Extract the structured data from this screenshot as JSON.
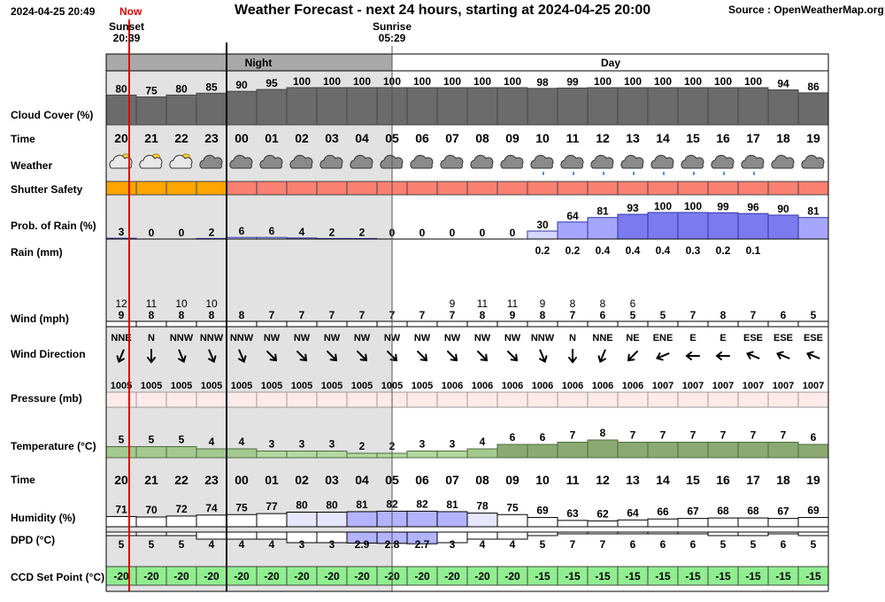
{
  "header": {
    "generated": "2024-04-25 20:49",
    "now_label": "Now",
    "title": "Weather Forecast - next 24 hours, starting at 2024-04-25 20:00",
    "source": "Source : OpenWeatherMap.org"
  },
  "events": {
    "sunset_label": "Sunset",
    "sunset_time": "20:39",
    "sunrise_label": "Sunrise",
    "sunrise_time": "05:29"
  },
  "period_labels": {
    "night": "Night",
    "day": "Day"
  },
  "row_labels": {
    "cloud_cover": "Cloud Cover (%)",
    "time": "Time",
    "weather": "Weather",
    "shutter_safety": "Shutter Safety",
    "prob_rain": "Prob. of Rain (%)",
    "rain": "Rain (mm)",
    "wind": "Wind (mph)",
    "wind_direction": "Wind Direction",
    "pressure": "Pressure (mb)",
    "temperature": "Temperature (°C)",
    "time2": "Time",
    "humidity": "Humidity (%)",
    "dpd": "DPD (°C)",
    "ccd": "CCD Set Point (°C)"
  },
  "chart_data": {
    "type": "table",
    "hours": [
      "20",
      "21",
      "22",
      "23",
      "00",
      "01",
      "02",
      "03",
      "04",
      "05",
      "06",
      "07",
      "08",
      "09",
      "10",
      "11",
      "12",
      "13",
      "14",
      "15",
      "16",
      "17",
      "18",
      "19"
    ],
    "cloud_cover": [
      80,
      75,
      80,
      85,
      90,
      95,
      100,
      100,
      100,
      100,
      100,
      100,
      100,
      100,
      98,
      99,
      100,
      100,
      100,
      100,
      100,
      100,
      94,
      86
    ],
    "weather_icons": [
      "partly-cloudy-night-icon",
      "partly-cloudy-night-icon",
      "partly-cloudy-night-icon",
      "cloud-icon",
      "cloud-icon",
      "cloud-icon",
      "cloud-icon",
      "cloud-icon",
      "cloud-icon",
      "cloud-icon",
      "cloud-icon",
      "cloud-icon",
      "cloud-icon",
      "cloud-icon",
      "rain-cloud-icon",
      "rain-cloud-icon",
      "rain-cloud-icon",
      "rain-cloud-icon",
      "rain-cloud-icon",
      "rain-cloud-icon",
      "rain-cloud-icon",
      "rain-cloud-icon",
      "cloud-icon",
      "cloud-icon"
    ],
    "shutter_safety": [
      "caution",
      "caution",
      "caution",
      "caution",
      "unsafe",
      "unsafe",
      "unsafe",
      "unsafe",
      "unsafe",
      "unsafe",
      "unsafe",
      "unsafe",
      "unsafe",
      "unsafe",
      "unsafe",
      "unsafe",
      "unsafe",
      "unsafe",
      "unsafe",
      "unsafe",
      "unsafe",
      "unsafe",
      "unsafe",
      "unsafe"
    ],
    "prob_rain": [
      3,
      0,
      0,
      2,
      6,
      6,
      4,
      2,
      2,
      0,
      0,
      0,
      0,
      0,
      30,
      64,
      81,
      93,
      100,
      100,
      99,
      96,
      90,
      81
    ],
    "rain_mm": [
      "",
      "",
      "",
      "",
      "",
      "",
      "",
      "",
      "",
      "",
      "",
      "",
      "",
      "",
      "0.2",
      "0.2",
      "0.4",
      "0.4",
      "0.4",
      "0.3",
      "0.2",
      "0.1",
      "",
      ""
    ],
    "wind_mph": [
      9,
      8,
      8,
      8,
      8,
      7,
      7,
      7,
      7,
      7,
      7,
      7,
      8,
      9,
      8,
      7,
      6,
      5,
      5,
      7,
      8,
      7,
      6,
      5
    ],
    "wind_gust_mph": [
      12,
      11,
      10,
      10,
      null,
      null,
      null,
      null,
      null,
      null,
      null,
      9,
      11,
      11,
      9,
      8,
      8,
      6,
      null,
      null,
      null,
      null,
      null,
      null
    ],
    "wind_direction": [
      "NNE",
      "N",
      "NNW",
      "NNW",
      "NNW",
      "NW",
      "NW",
      "NW",
      "NW",
      "NW",
      "NW",
      "NW",
      "NW",
      "NW",
      "NNW",
      "N",
      "NNE",
      "NE",
      "ENE",
      "E",
      "E",
      "ESE",
      "ESE",
      "ESE"
    ],
    "pressure_mb": [
      1005,
      1005,
      1005,
      1005,
      1005,
      1005,
      1005,
      1005,
      1005,
      1005,
      1005,
      1006,
      1006,
      1006,
      1006,
      1006,
      1006,
      1006,
      1007,
      1007,
      1007,
      1007,
      1007,
      1007
    ],
    "temperature_c": [
      5,
      5,
      5,
      4,
      4,
      3,
      3,
      3,
      2,
      2,
      3,
      3,
      4,
      6,
      6,
      7,
      8,
      7,
      7,
      7,
      7,
      7,
      7,
      6
    ],
    "humidity_pct": [
      71,
      70,
      72,
      74,
      75,
      77,
      80,
      80,
      81,
      82,
      82,
      81,
      78,
      75,
      69,
      63,
      62,
      64,
      66,
      67,
      68,
      68,
      67,
      69
    ],
    "dpd_c": [
      "5",
      "5",
      "5",
      "4",
      "4",
      "4",
      "3",
      "3",
      "2.9",
      "2.8",
      "2.7",
      "3",
      "4",
      "4",
      "5",
      "7",
      "7",
      "6",
      "6",
      "6",
      "5",
      "5",
      "6",
      "5"
    ],
    "ccd_set_point_c": [
      -20,
      -20,
      -20,
      -20,
      -20,
      -20,
      -20,
      -20,
      -20,
      -20,
      -20,
      -20,
      -20,
      -20,
      -15,
      -15,
      -15,
      -15,
      -15,
      -15,
      -15,
      -15,
      -15,
      -15
    ]
  },
  "colors": {
    "cloud": "#6b6b6b",
    "night_shade": "#e2e2e2",
    "shutter_caution": "#ffa500",
    "shutter_unsafe": "#fa8072",
    "rain_fill": "#7b7bef",
    "pressure_fill": "#ffeaea",
    "temp_warm": "#8aaa72",
    "temp_cool": "#b3d9a0",
    "humidity_high": "#b3b3ff",
    "ccd_fill": "#90ee90",
    "now_line": "#e00000"
  }
}
